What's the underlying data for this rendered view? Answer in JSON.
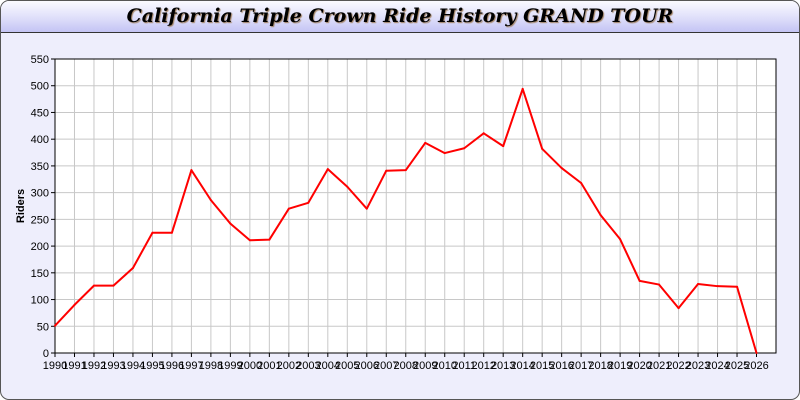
{
  "chart_data": {
    "type": "line",
    "title": "California Triple Crown Ride History GRAND TOUR",
    "xlabel": "",
    "ylabel": "Riders",
    "x": [
      1990,
      1991,
      1992,
      1993,
      1994,
      1995,
      1996,
      1997,
      1998,
      1999,
      2000,
      2001,
      2002,
      2003,
      2004,
      2005,
      2006,
      2007,
      2008,
      2009,
      2010,
      2011,
      2012,
      2013,
      2014,
      2015,
      2016,
      2017,
      2018,
      2019,
      2020,
      2021,
      2022,
      2023,
      2024,
      2025,
      2026
    ],
    "values": [
      51,
      90,
      126,
      126,
      159,
      225,
      225,
      342,
      286,
      242,
      211,
      212,
      270,
      281,
      344,
      311,
      270,
      341,
      342,
      393,
      374,
      383,
      411,
      387,
      494,
      382,
      346,
      318,
      258,
      213,
      135,
      128,
      84,
      129,
      125,
      124,
      0
    ],
    "xlim": [
      1990,
      2027
    ],
    "ylim": [
      0,
      550
    ],
    "yticks": [
      0,
      50,
      100,
      150,
      200,
      250,
      300,
      350,
      400,
      450,
      500,
      550
    ],
    "grid": true,
    "line_color": "#ff0000",
    "grid_color": "#c8c8c8"
  }
}
